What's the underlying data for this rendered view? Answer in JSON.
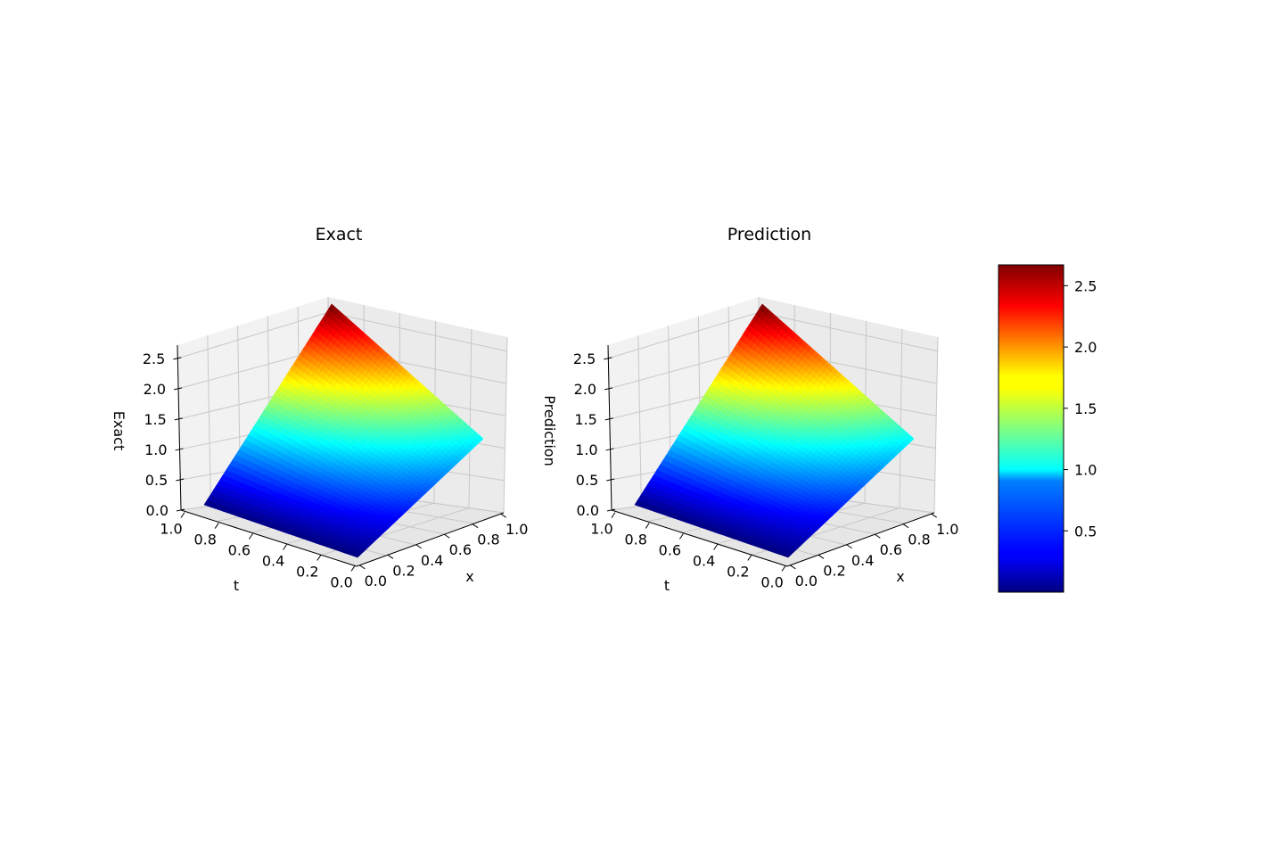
{
  "chart_data": [
    {
      "type": "surface",
      "title": "Exact",
      "xlabel": "x",
      "ylabel": "t",
      "zlabel": "Exact",
      "xlim": [
        0,
        1
      ],
      "tlim": [
        0,
        1
      ],
      "zlim": [
        0,
        2.718
      ],
      "x_ticks": [
        "0.0",
        "0.2",
        "0.4",
        "0.6",
        "0.8",
        "1.0"
      ],
      "t_ticks": [
        "0.0",
        "0.2",
        "0.4",
        "0.6",
        "0.8",
        "1.0"
      ],
      "z_ticks": [
        "0.0",
        "0.5",
        "1.0",
        "1.5",
        "2.0",
        "2.5"
      ],
      "corner_values": [
        {
          "x": 0,
          "t": 0,
          "z": 0.0
        },
        {
          "x": 1,
          "t": 0,
          "z": 1.0
        },
        {
          "x": 1,
          "t": 1,
          "z": 2.718
        },
        {
          "x": 0,
          "t": 1,
          "z": 0.0
        }
      ],
      "colormap": "jet",
      "grid": true
    },
    {
      "type": "surface",
      "title": "Prediction",
      "xlabel": "x",
      "ylabel": "t",
      "zlabel": "Prediction",
      "xlim": [
        0,
        1
      ],
      "tlim": [
        0,
        1
      ],
      "zlim": [
        0,
        2.718
      ],
      "x_ticks": [
        "0.0",
        "0.2",
        "0.4",
        "0.6",
        "0.8",
        "1.0"
      ],
      "t_ticks": [
        "0.0",
        "0.2",
        "0.4",
        "0.6",
        "0.8",
        "1.0"
      ],
      "z_ticks": [
        "0.0",
        "0.5",
        "1.0",
        "1.5",
        "2.0",
        "2.5"
      ],
      "corner_values": [
        {
          "x": 0,
          "t": 0,
          "z": 0.0
        },
        {
          "x": 1,
          "t": 0,
          "z": 1.0
        },
        {
          "x": 1,
          "t": 1,
          "z": 2.718
        },
        {
          "x": 0,
          "t": 1,
          "z": 0.0
        }
      ],
      "colormap": "jet",
      "grid": true
    }
  ],
  "colorbar": {
    "range": [
      0.0,
      2.67
    ],
    "ticks": [
      0.5,
      1.0,
      1.5,
      2.0,
      2.5
    ],
    "tick_labels": [
      "0.5",
      "1.0",
      "1.5",
      "2.0",
      "2.5"
    ],
    "colormap": "jet",
    "placement": "right"
  }
}
